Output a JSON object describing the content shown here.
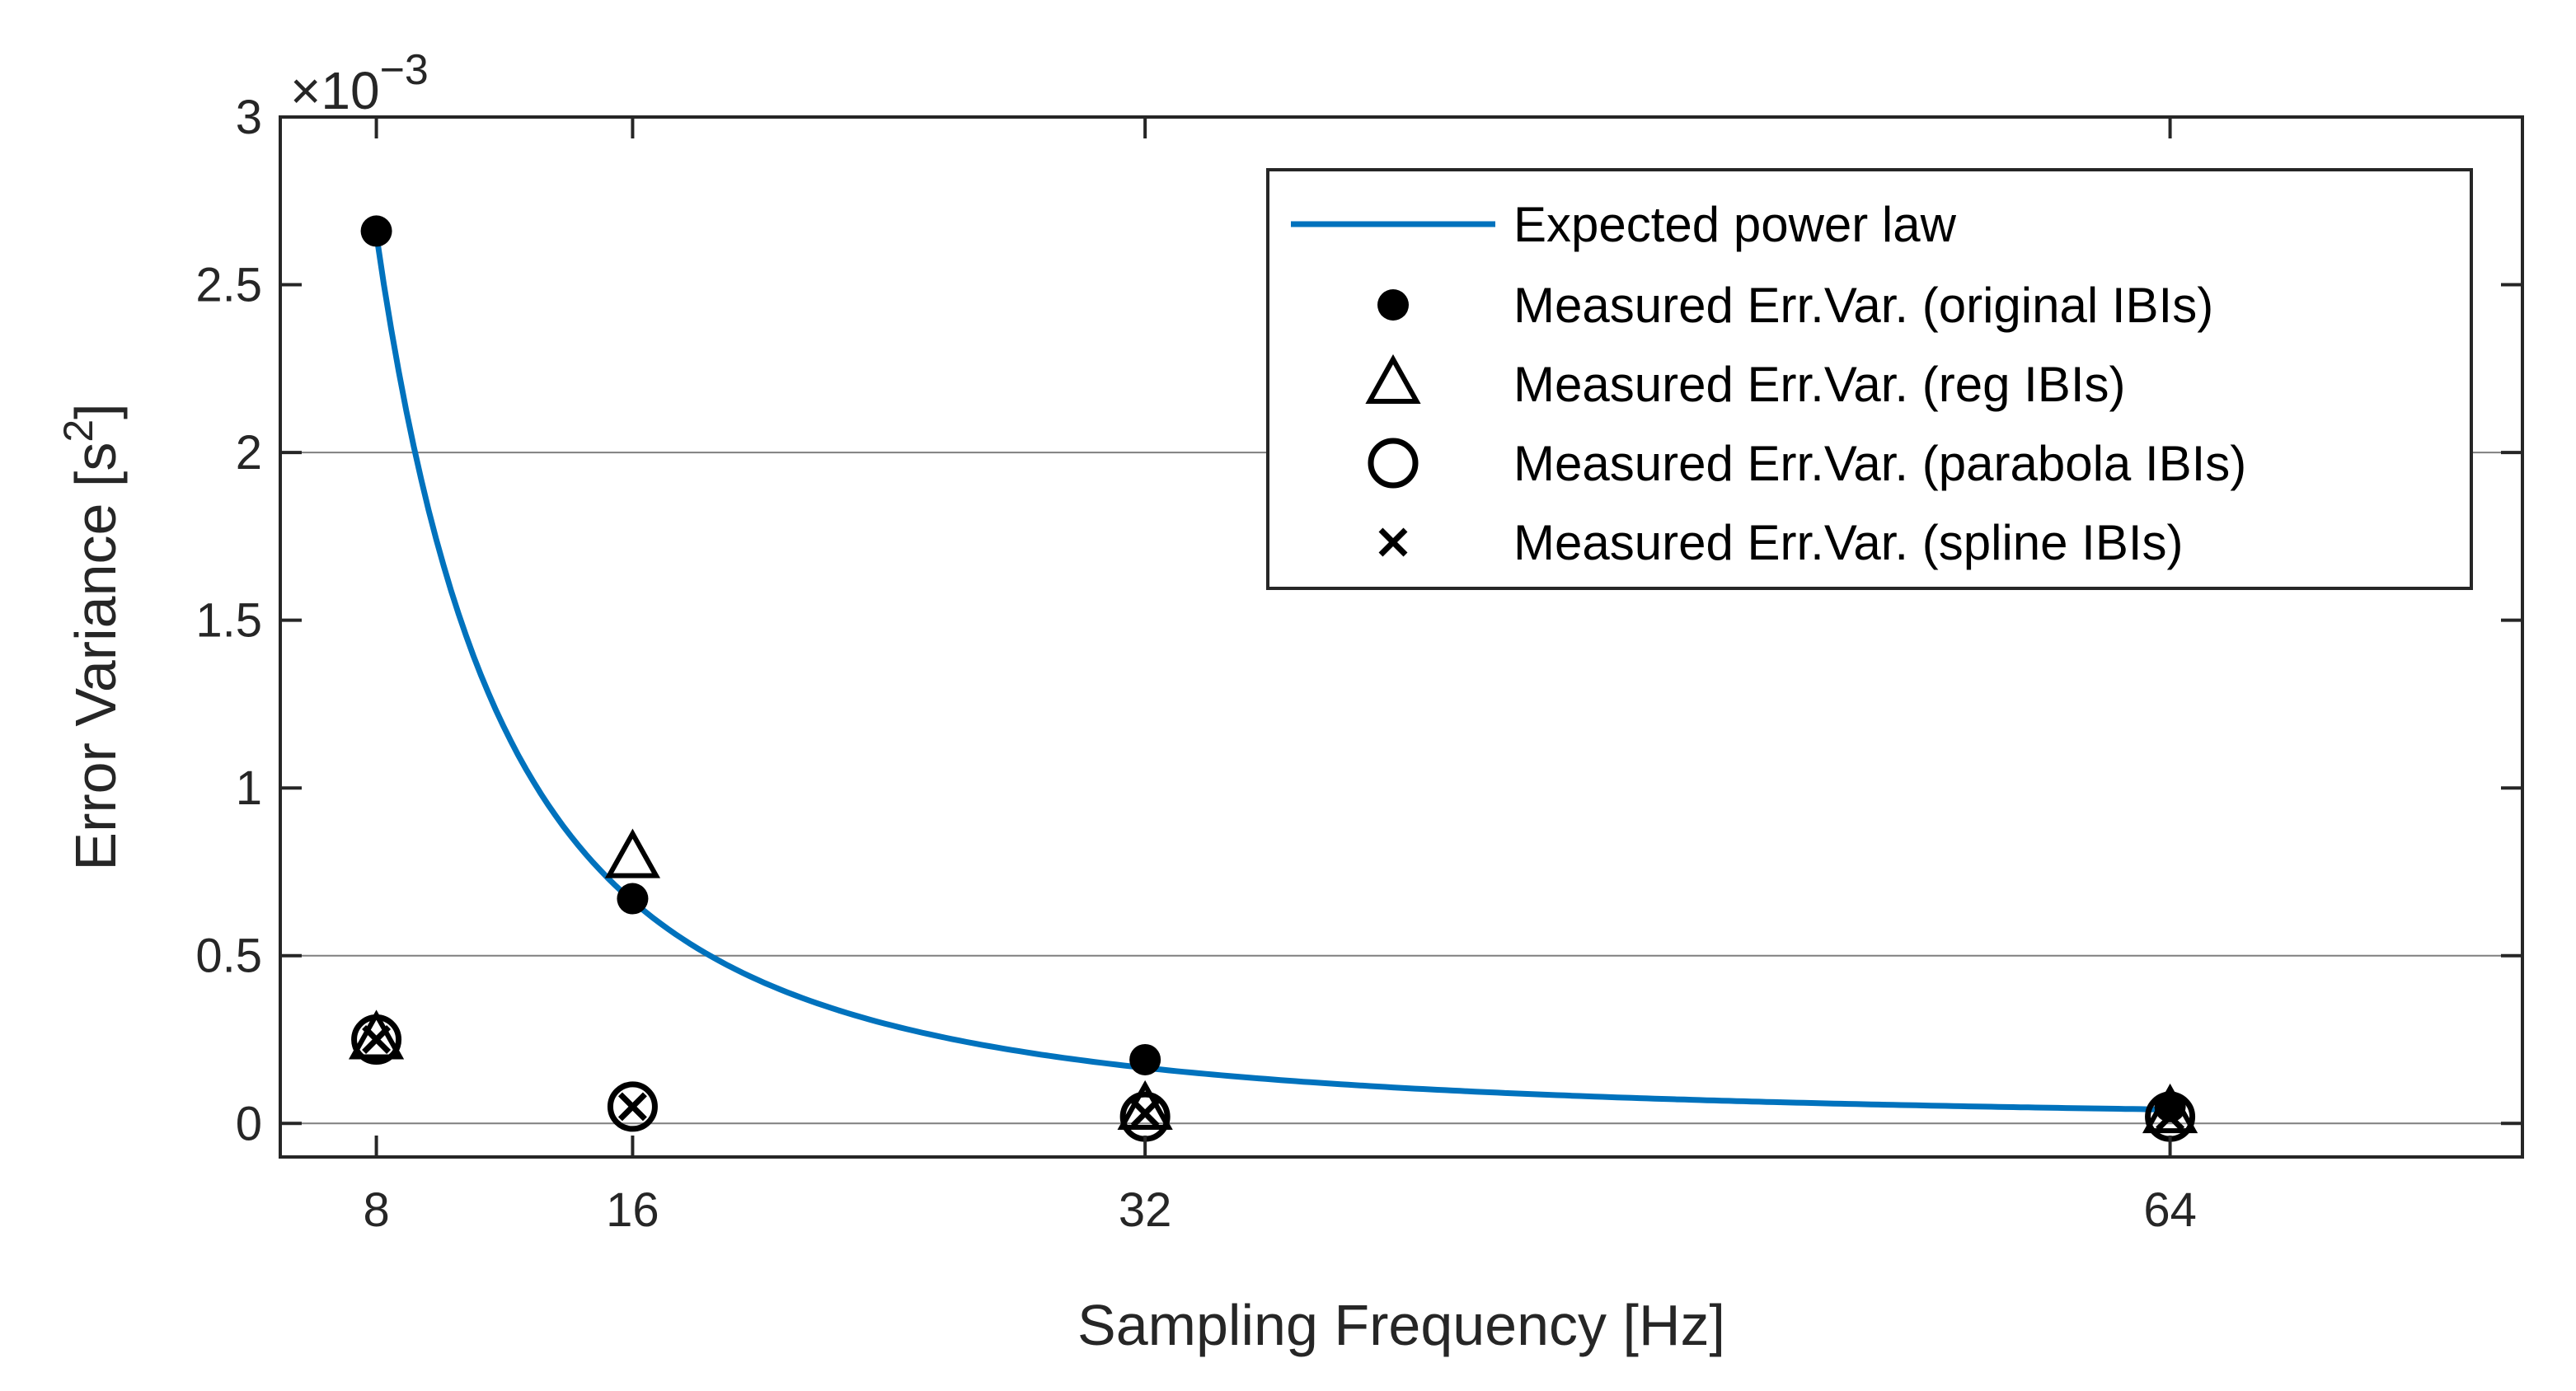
{
  "chart_data": {
    "type": "scatter",
    "title": "",
    "xlabel": "Sampling Frequency [Hz]",
    "ylabel": "Error Variance [s",
    "ylabel_superscript": "2",
    "ylabel_suffix": "]",
    "x_ticks": [
      "8",
      "16",
      "32",
      "64"
    ],
    "x_tick_values": [
      8,
      16,
      32,
      64
    ],
    "xlim": [
      5,
      75
    ],
    "y_ticks": [
      "0",
      "0.5",
      "1",
      "1.5",
      "2",
      "2.5",
      "3"
    ],
    "y_tick_values": [
      0,
      0.5,
      1,
      1.5,
      2,
      2.5,
      3
    ],
    "ylim": [
      -0.1,
      3
    ],
    "y_scale_label": "×10",
    "y_scale_exponent": "−3",
    "y_units_note": "values in units of 10^-3 s^2",
    "legend_position": "top-right",
    "reference_lines": [
      0,
      0.5,
      2
    ],
    "series": [
      {
        "name": "Expected power law",
        "kind": "line",
        "color": "#0072BD",
        "formula": "2.65*(8/x)^2",
        "x_range": [
          8,
          64
        ]
      },
      {
        "name": "Measured Err.Var. (original IBIs)",
        "kind": "marker",
        "marker": "filled-circle",
        "color": "#000000",
        "x": [
          8,
          16,
          32,
          64
        ],
        "y": [
          2.66,
          0.67,
          0.19,
          0.05
        ]
      },
      {
        "name": "Measured Err.Var. (reg IBIs)",
        "kind": "marker",
        "marker": "triangle",
        "color": "#000000",
        "x": [
          8,
          16,
          32,
          64
        ],
        "y": [
          0.25,
          0.79,
          0.04,
          0.03
        ]
      },
      {
        "name": "Measured Err.Var. (parabola IBIs)",
        "kind": "marker",
        "marker": "open-circle",
        "color": "#000000",
        "x": [
          8,
          16,
          32,
          64
        ],
        "y": [
          0.25,
          0.05,
          0.02,
          0.02
        ]
      },
      {
        "name": "Measured Err.Var. (spline IBIs)",
        "kind": "marker",
        "marker": "cross",
        "color": "#000000",
        "x": [
          8,
          16,
          32,
          64
        ],
        "y": [
          0.25,
          0.05,
          0.03,
          0.02
        ]
      }
    ]
  }
}
